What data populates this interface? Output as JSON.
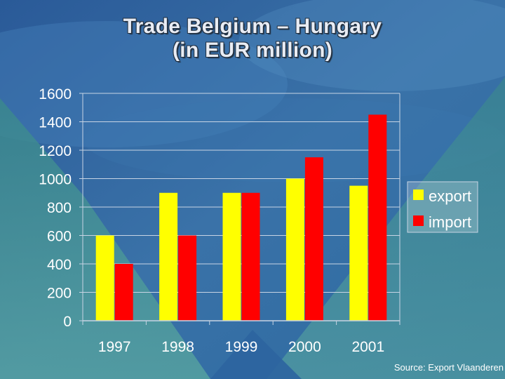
{
  "slide": {
    "title_line1": "Trade Belgium – Hungary",
    "title_line2": "(in EUR million)",
    "source": "Source: Export Vlaanderen"
  },
  "colors": {
    "export": "#ffff00",
    "import": "#ff0000",
    "grid": "#c8d4e4",
    "text": "#ffffff"
  },
  "chart_data": {
    "type": "bar",
    "title": "",
    "xlabel": "",
    "ylabel": "",
    "categories": [
      "1997",
      "1998",
      "1999",
      "2000",
      "2001"
    ],
    "series": [
      {
        "name": "export",
        "values": [
          600,
          900,
          900,
          1000,
          950
        ]
      },
      {
        "name": "import",
        "values": [
          400,
          600,
          900,
          1150,
          1450
        ]
      }
    ],
    "ylim": [
      0,
      1600
    ],
    "yticks": [
      0,
      200,
      400,
      600,
      800,
      1000,
      1200,
      1400,
      1600
    ],
    "grid": true,
    "legend_position": "right"
  }
}
